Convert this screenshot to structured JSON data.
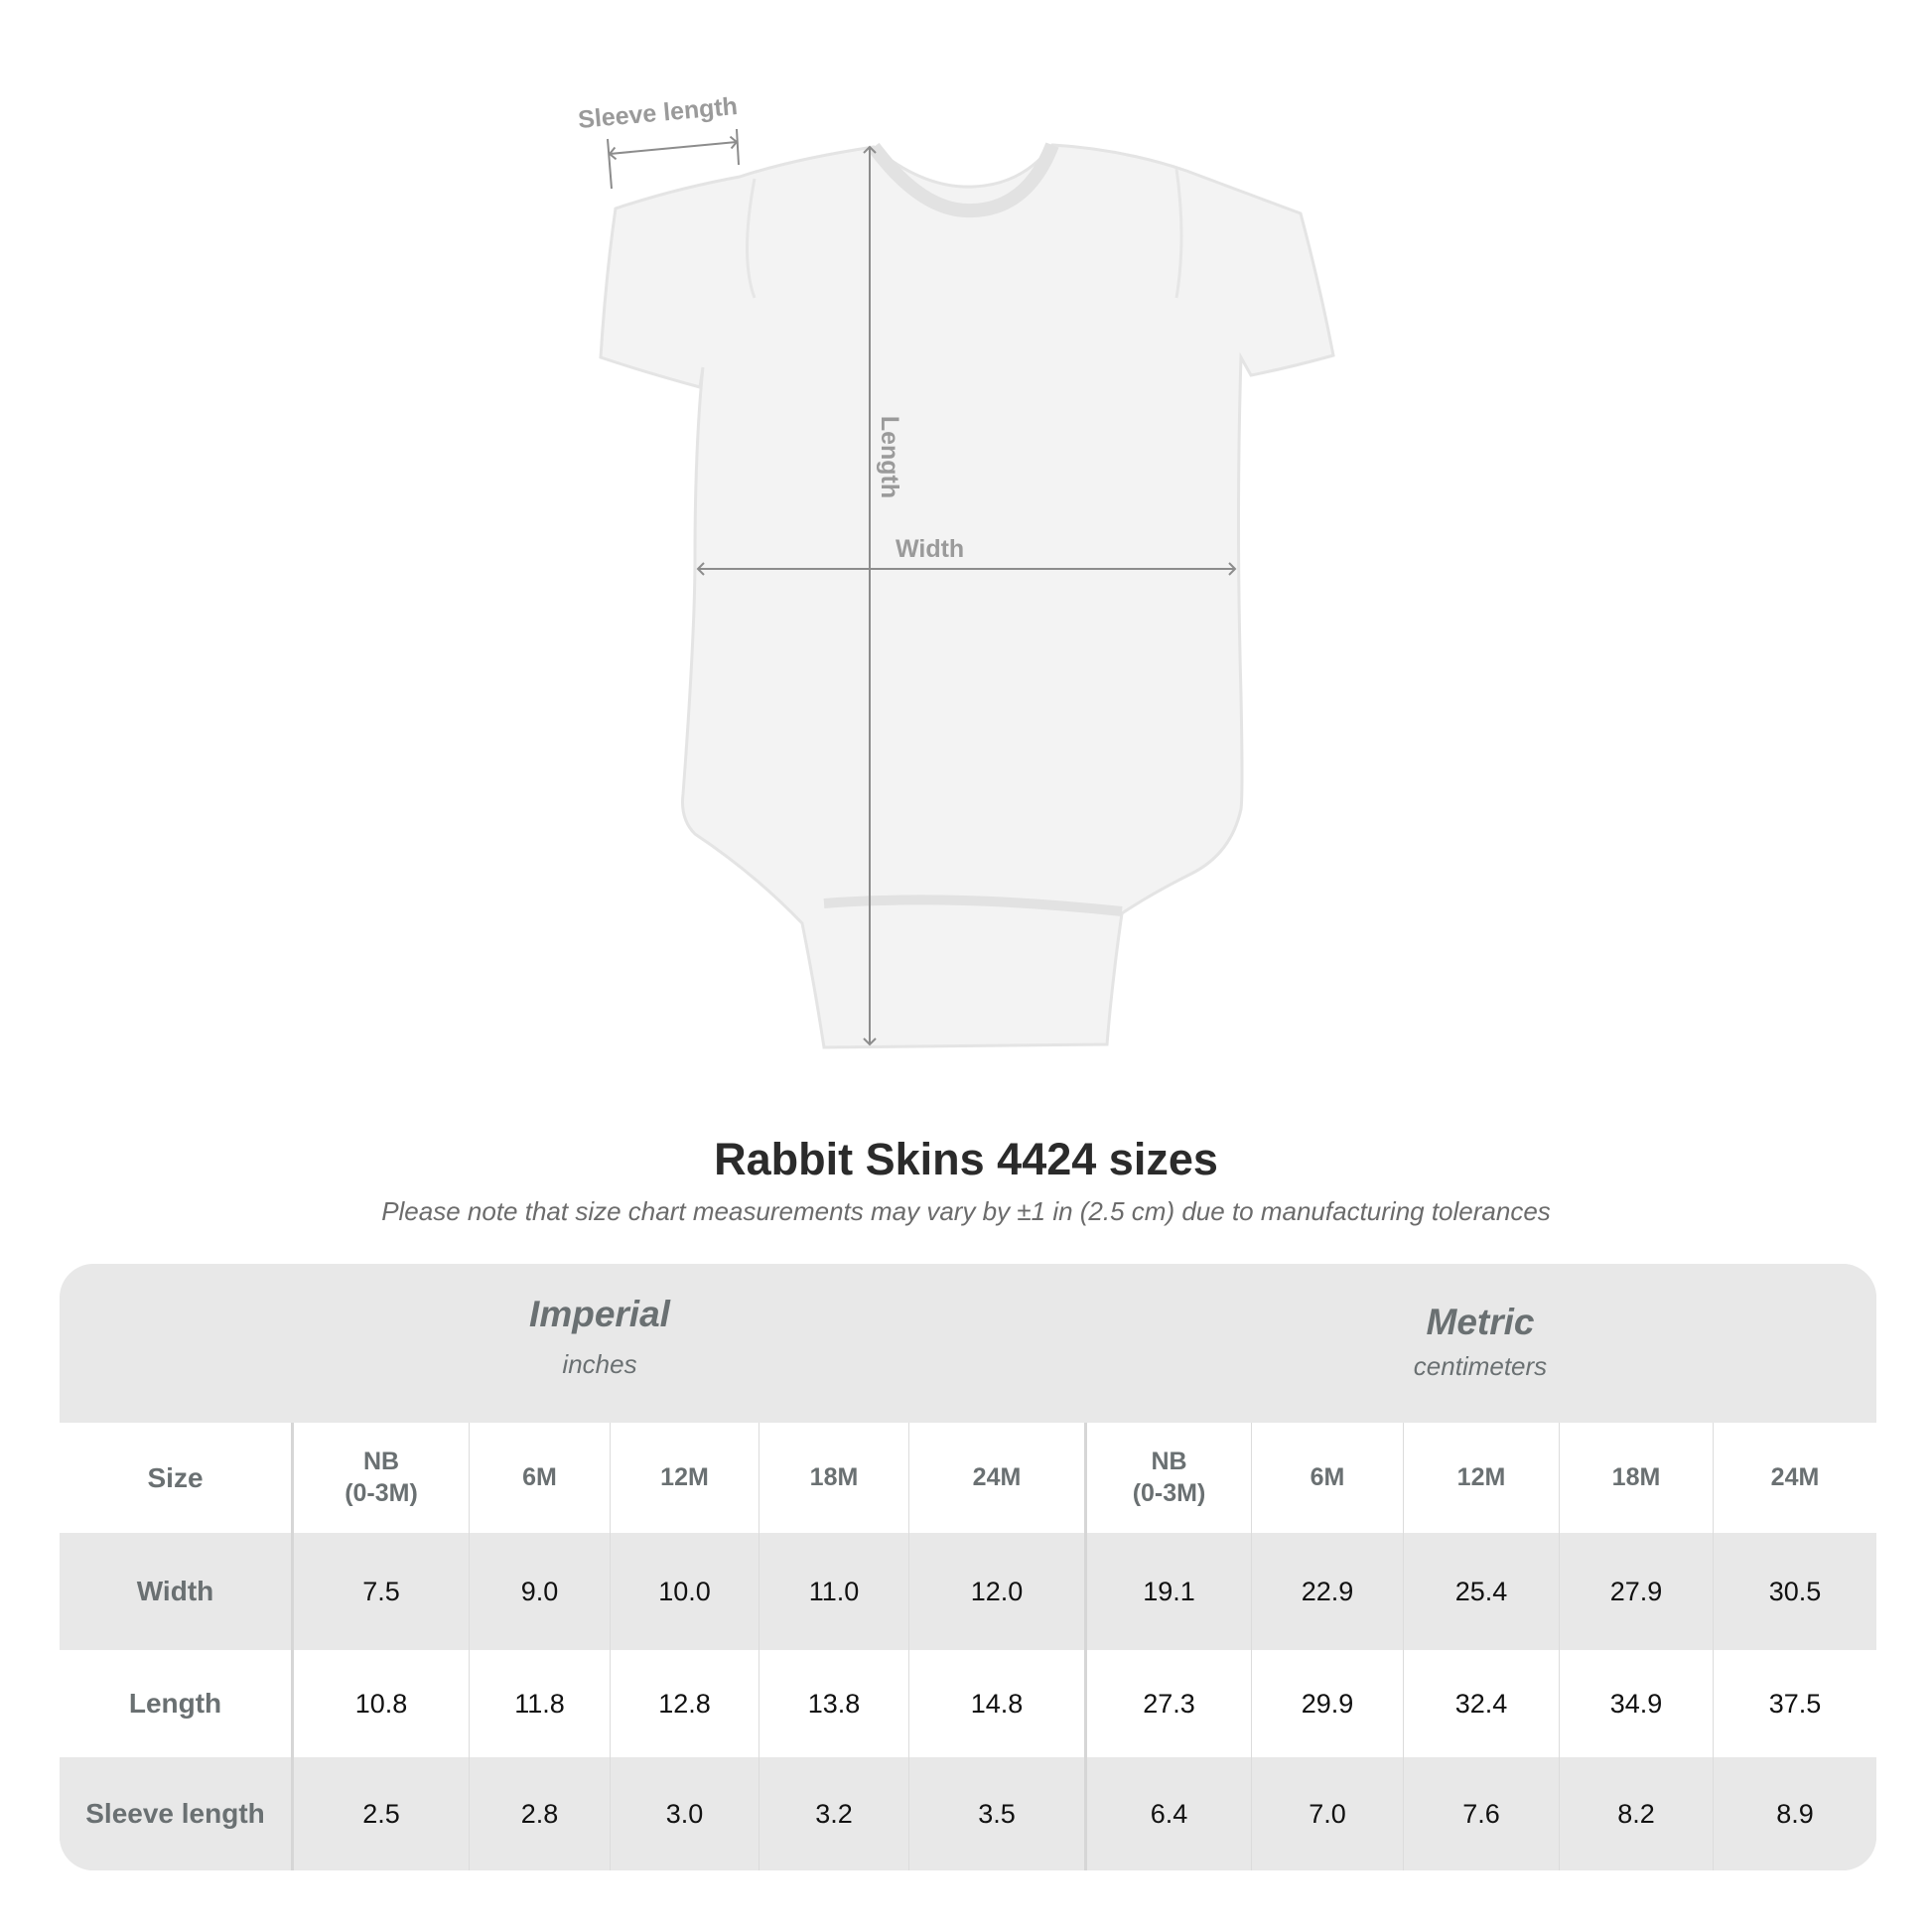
{
  "diagram": {
    "labels": {
      "sleeve_length": "Sleeve length",
      "length": "Length",
      "width": "Width"
    },
    "garment_color": "#f3f3f3",
    "arrow_color": "#8c8c8c"
  },
  "title": "Rabbit Skins 4424 sizes",
  "subtitle": "Please note that size chart measurements may vary by ±1 in (2.5 cm) due to manufacturing tolerances",
  "table": {
    "imperial": {
      "label": "Imperial",
      "unit": "inches"
    },
    "metric": {
      "label": "Metric",
      "unit": "centimeters"
    },
    "size_label": "Size",
    "sizes": [
      {
        "top": "NB",
        "bottom": "(0-3M)"
      },
      {
        "top": "6M",
        "bottom": ""
      },
      {
        "top": "12M",
        "bottom": ""
      },
      {
        "top": "18M",
        "bottom": ""
      },
      {
        "top": "24M",
        "bottom": ""
      }
    ],
    "rows": [
      {
        "label": "Width",
        "imperial": [
          "7.5",
          "9.0",
          "10.0",
          "11.0",
          "12.0"
        ],
        "metric": [
          "19.1",
          "22.9",
          "25.4",
          "27.9",
          "30.5"
        ]
      },
      {
        "label": "Length",
        "imperial": [
          "10.8",
          "11.8",
          "12.8",
          "13.8",
          "14.8"
        ],
        "metric": [
          "27.3",
          "29.9",
          "32.4",
          "34.9",
          "37.5"
        ]
      },
      {
        "label": "Sleeve length",
        "imperial": [
          "2.5",
          "2.8",
          "3.0",
          "3.2",
          "3.5"
        ],
        "metric": [
          "6.4",
          "7.0",
          "7.6",
          "8.2",
          "8.9"
        ]
      }
    ]
  }
}
